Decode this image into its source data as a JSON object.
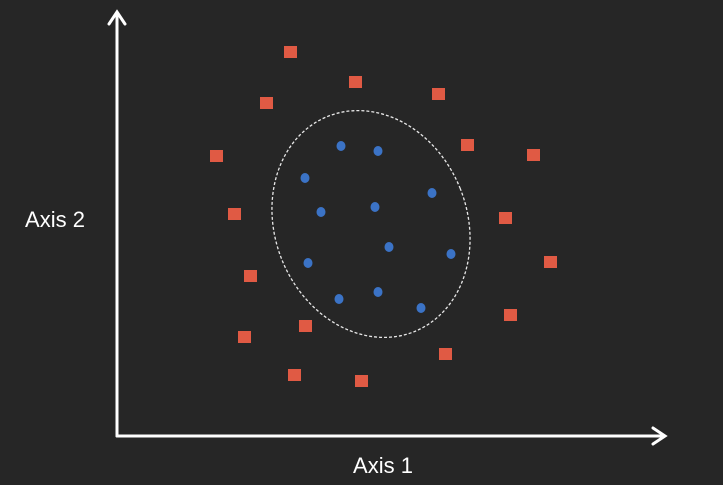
{
  "axes": {
    "x_label": "Axis 1",
    "y_label": "Axis 2"
  }
}
